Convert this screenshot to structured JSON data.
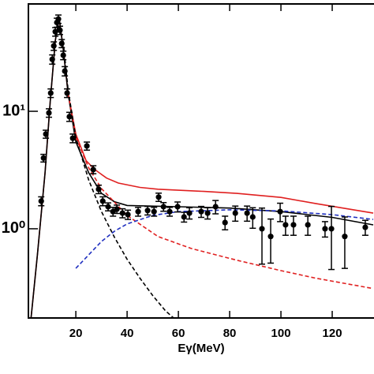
{
  "chart_data": {
    "type": "line",
    "xlabel": "Eγ(MeV)",
    "xlim": [
      1.5,
      136.3
    ],
    "xticks": [
      20,
      40,
      60,
      80,
      100,
      120
    ],
    "ylim": [
      0.174,
      82
    ],
    "ylog": true,
    "yticks": [
      {
        "value": 1,
        "label": "10⁰"
      },
      {
        "value": 10,
        "label": "10¹"
      }
    ],
    "series": [
      {
        "color": "#e02020",
        "dash": false,
        "x": [
          2.5,
          5,
          8,
          10,
          12,
          13.5,
          15,
          17,
          20,
          24,
          27.4,
          32,
          36.6,
          45,
          52,
          70,
          82.8,
          100,
          113.5,
          136
        ],
        "values": [
          0.17,
          0.6,
          3,
          12,
          40,
          62,
          35,
          14,
          6.4,
          3.8,
          3.19,
          2.7,
          2.45,
          2.25,
          2.17,
          2.08,
          2.0,
          1.85,
          1.64,
          1.36
        ]
      },
      {
        "color": "#000000",
        "dash": false,
        "x": [
          2.5,
          5,
          8,
          10,
          12,
          13.5,
          15,
          17,
          20,
          25,
          30,
          35,
          40,
          60,
          80,
          100,
          120,
          136
        ],
        "values": [
          0.17,
          0.6,
          3,
          12,
          40,
          62,
          35,
          14,
          5.5,
          3.0,
          2.0,
          1.7,
          1.58,
          1.54,
          1.5,
          1.4,
          1.25,
          1.08
        ]
      },
      {
        "color": "#e02020",
        "dash": true,
        "x": [
          17,
          20,
          25,
          30,
          40,
          52,
          65,
          82.8,
          100,
          113.5,
          136
        ],
        "values": [
          14,
          6.0,
          3.3,
          2.2,
          1.3,
          0.86,
          0.68,
          0.54,
          0.44,
          0.38,
          0.31
        ]
      },
      {
        "color": "#000000",
        "dash": true,
        "x": [
          15,
          17,
          20,
          25,
          30,
          35,
          40,
          45,
          50,
          55,
          58
        ],
        "values": [
          40,
          15,
          6,
          2.6,
          1.4,
          0.85,
          0.55,
          0.38,
          0.27,
          0.2,
          0.175
        ]
      },
      {
        "color": "#2030c0",
        "dash": true,
        "x": [
          20,
          25,
          30,
          35,
          40,
          50,
          60,
          80,
          100,
          120,
          136
        ],
        "values": [
          0.46,
          0.6,
          0.78,
          0.95,
          1.1,
          1.3,
          1.4,
          1.45,
          1.42,
          1.32,
          1.2
        ]
      },
      {
        "color": "#000000",
        "marker": "circle",
        "x": [
          6.5,
          7.4,
          8.3,
          9.5,
          10.2,
          10.8,
          11.4,
          12.0,
          12.6,
          13.2,
          13.8,
          14.5,
          15.1,
          15.7,
          16.6,
          17.5,
          18.8,
          24.3,
          26.8,
          28.9,
          30.5,
          32.6,
          34.5,
          36,
          38.2,
          40.3,
          44.3,
          48,
          50.5,
          52.3,
          54.2,
          56.6,
          59.7,
          62.2,
          64.3,
          68.9,
          71.4,
          74.5,
          78.2,
          82.2,
          86.8,
          89,
          92.6,
          96,
          99.7,
          101.8,
          104.9,
          110.5,
          117.2,
          119.7,
          124.9,
          132.9
        ],
        "values": [
          1.72,
          4.0,
          6.4,
          9.7,
          14.3,
          27.7,
          36,
          47.6,
          57,
          61,
          49,
          37.8,
          30,
          22,
          14.3,
          9.0,
          5.9,
          5.07,
          3.19,
          2.17,
          1.72,
          1.54,
          1.4,
          1.47,
          1.36,
          1.32,
          1.4,
          1.43,
          1.4,
          1.86,
          1.54,
          1.4,
          1.54,
          1.26,
          1.36,
          1.4,
          1.36,
          1.54,
          1.13,
          1.36,
          1.36,
          1.26,
          1.0,
          0.86,
          1.4,
          1.08,
          1.08,
          1.08,
          1.0,
          1.0,
          0.86,
          1.03
        ],
        "errors": [
          0.15,
          0.3,
          0.5,
          0.8,
          1.2,
          2.5,
          3,
          4,
          5,
          5,
          4,
          3,
          2.5,
          2,
          1.2,
          0.8,
          0.5,
          0.4,
          0.25,
          0.18,
          0.15,
          0.12,
          0.12,
          0.12,
          0.12,
          0.12,
          0.12,
          0.12,
          0.12,
          0.15,
          0.13,
          0.12,
          0.15,
          0.12,
          0.15,
          0.15,
          0.15,
          0.2,
          0.15,
          0.2,
          0.2,
          0.25,
          0.5,
          0.35,
          0.25,
          0.2,
          0.2,
          0.2,
          0.15,
          0.55,
          0.4,
          0.15
        ]
      }
    ]
  }
}
